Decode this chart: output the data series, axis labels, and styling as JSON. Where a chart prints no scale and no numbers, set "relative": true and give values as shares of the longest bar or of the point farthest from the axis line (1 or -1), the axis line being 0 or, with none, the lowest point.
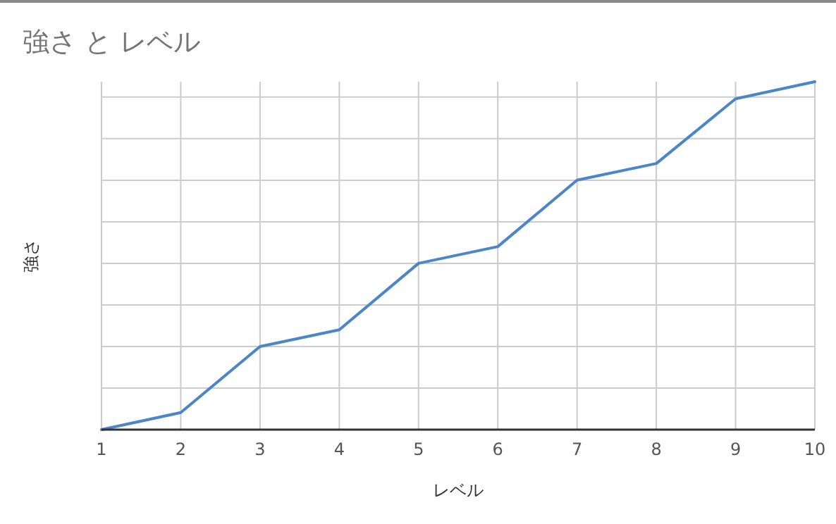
{
  "chart_data": {
    "type": "line",
    "title": "強さ と レベル",
    "xlabel": "レベル",
    "ylabel": "強さ",
    "relative": true,
    "x": [
      1,
      2,
      3,
      4,
      5,
      6,
      7,
      8,
      9,
      10
    ],
    "xlim": [
      1,
      10
    ],
    "xticks": [
      1,
      2,
      3,
      4,
      5,
      6,
      7,
      8,
      9,
      10
    ],
    "series": [
      {
        "color": "#4a86c8",
        "values": [
          0,
          0.049,
          0.239,
          0.287,
          0.478,
          0.526,
          0.717,
          0.765,
          0.951,
          1
        ]
      }
    ],
    "grid": true,
    "marker": "none",
    "line_style": "solid"
  }
}
